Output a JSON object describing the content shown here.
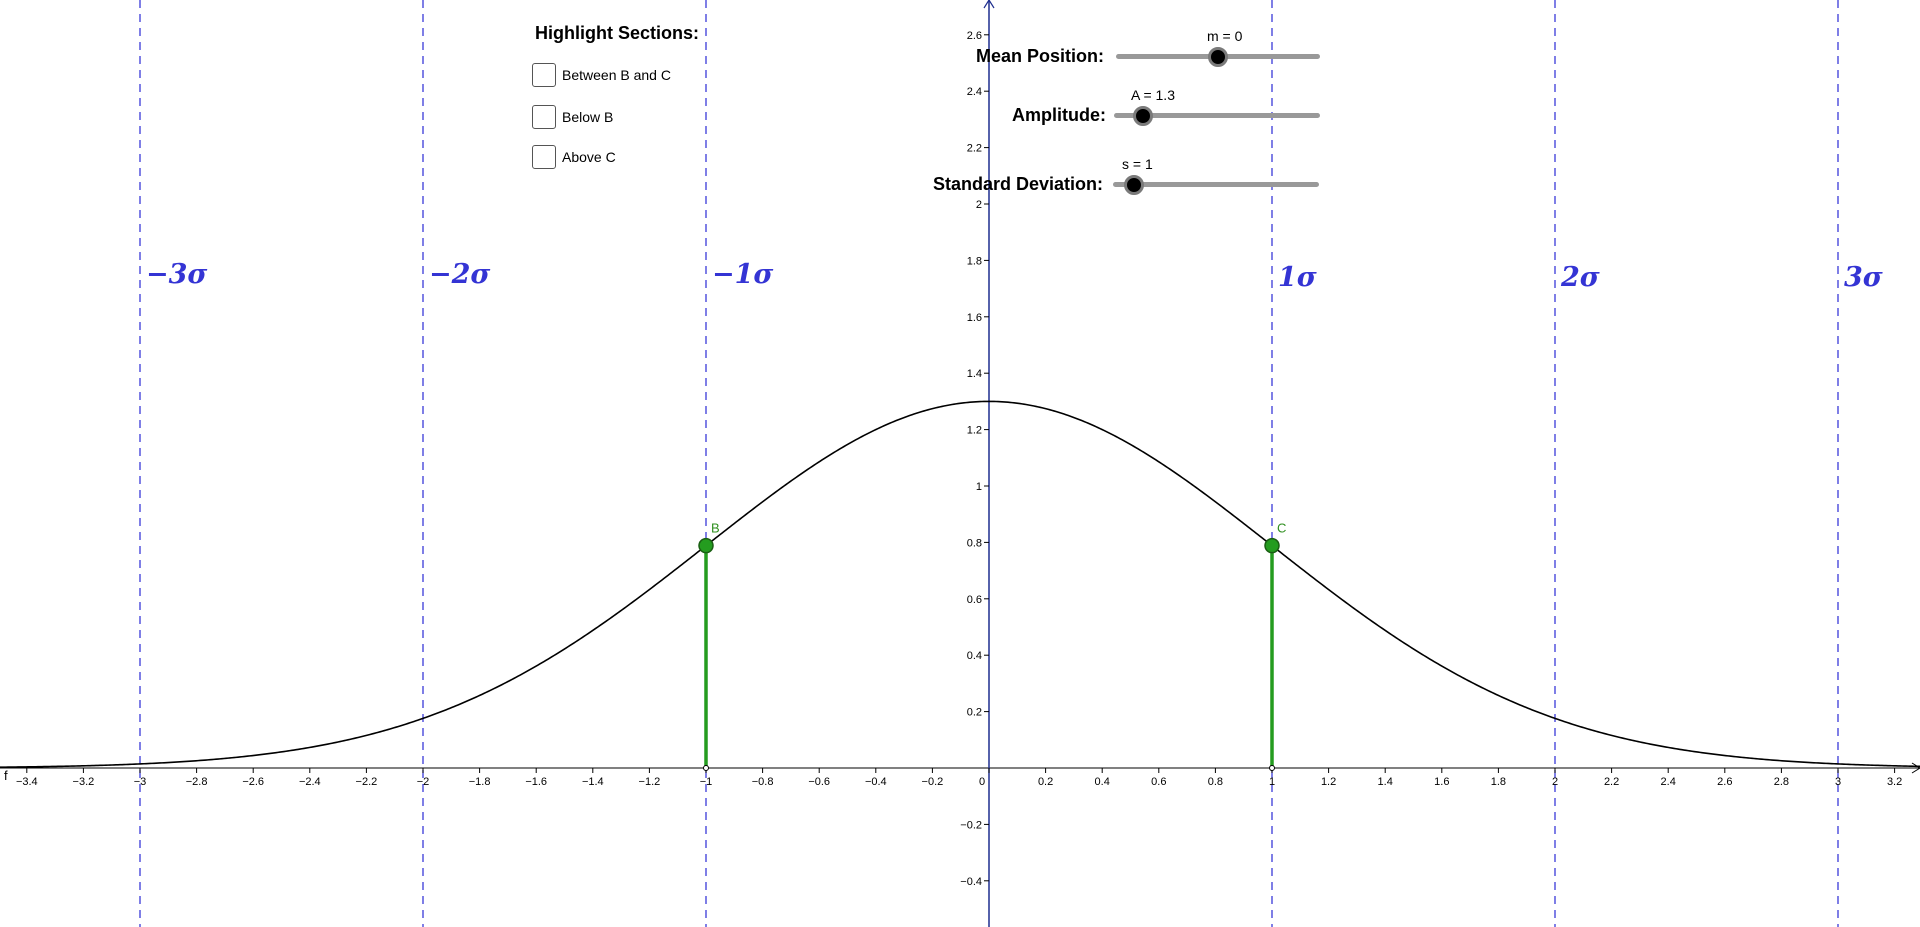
{
  "panel": {
    "title": "Highlight Sections:",
    "checkboxes": [
      {
        "label": "Between B and C",
        "checked": false
      },
      {
        "label": "Below B",
        "checked": false
      },
      {
        "label": "Above C",
        "checked": false
      }
    ]
  },
  "sliders": {
    "mean": {
      "label": "Mean Position:",
      "readout": "m = 0",
      "value": 0,
      "min": -5,
      "max": 5
    },
    "amplitude": {
      "label": "Amplitude:",
      "readout": "A = 1.3",
      "value": 1.3,
      "min": 0,
      "max": 10
    },
    "stddev": {
      "label": "Standard Deviation:",
      "readout": "s = 1",
      "value": 1,
      "min": 0,
      "max": 10
    }
  },
  "sigma_labels": [
    "−3σ",
    "−2σ",
    "−1σ",
    "1σ",
    "2σ",
    "3σ"
  ],
  "sigma_positions": [
    -3,
    -2,
    -1,
    1,
    2,
    3
  ],
  "points": [
    {
      "name": "B",
      "x": -1
    },
    {
      "name": "C",
      "x": 1
    }
  ],
  "function_label": "f",
  "x_ticks": [
    "−3.4",
    "−3.2",
    "−3",
    "−2.8",
    "−2.6",
    "−2.4",
    "−2.2",
    "−2",
    "−1.8",
    "−1.6",
    "−1.4",
    "−1.2",
    "−1",
    "−0.8",
    "−0.6",
    "−0.4",
    "−0.2",
    "0",
    "0.2",
    "0.4",
    "0.6",
    "0.8",
    "1",
    "1.2",
    "1.4",
    "1.6",
    "1.8",
    "2",
    "2.2",
    "2.4",
    "2.6",
    "2.8",
    "3",
    "3.2"
  ],
  "y_ticks": [
    "−0.4",
    "−0.2",
    "0.2",
    "0.4",
    "0.6",
    "0.8",
    "1",
    "1.2",
    "1.4",
    "1.6",
    "1.8",
    "2",
    "2.2",
    "2.4",
    "2.6"
  ],
  "colors": {
    "axis": "#1f2f8f",
    "sigma_line": "#3a3ad8",
    "sigma_text": "#3434d4",
    "curve": "#000000",
    "segment": "#249c1f",
    "point_fill": "#249c1f",
    "point_stroke": "#1a5e13",
    "point_label": "#2f8f1f"
  }
}
